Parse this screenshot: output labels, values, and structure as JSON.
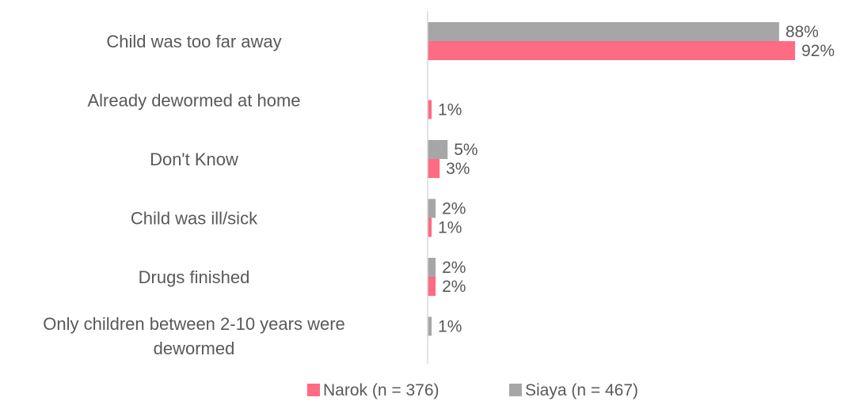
{
  "chart_data": {
    "type": "bar",
    "orientation": "horizontal",
    "categories": [
      "Child was too far away",
      "Already dewormed at home",
      "Don't Know",
      "Child was ill/sick",
      "Drugs finished",
      "Only children between 2-10 years were dewormed"
    ],
    "category_lines": [
      [
        "Child was too far away"
      ],
      [
        "Already dewormed at home"
      ],
      [
        "Don't Know"
      ],
      [
        "Child was ill/sick"
      ],
      [
        "Drugs finished"
      ],
      [
        "Only children between 2-10 years were",
        "dewormed"
      ]
    ],
    "series": [
      {
        "name": "Siaya (n = 467)",
        "color": "#a6a6a6",
        "values": [
          88,
          null,
          5,
          2,
          2,
          1
        ],
        "labels": [
          "88%",
          "",
          "5%",
          "2%",
          "2%",
          "1%"
        ]
      },
      {
        "name": "Narok (n = 376)",
        "color": "#ff6b82",
        "values": [
          92,
          1,
          3,
          1,
          2,
          null
        ],
        "labels": [
          "92%",
          "1%",
          "3%",
          "1%",
          "2%",
          ""
        ]
      }
    ],
    "legend": {
      "placement": "bottom",
      "order": [
        "Narok (n = 376)",
        "Siaya (n = 467)"
      ]
    },
    "xlim": [
      0,
      100
    ],
    "grid": false,
    "axis_color": "#d9d9d9"
  }
}
